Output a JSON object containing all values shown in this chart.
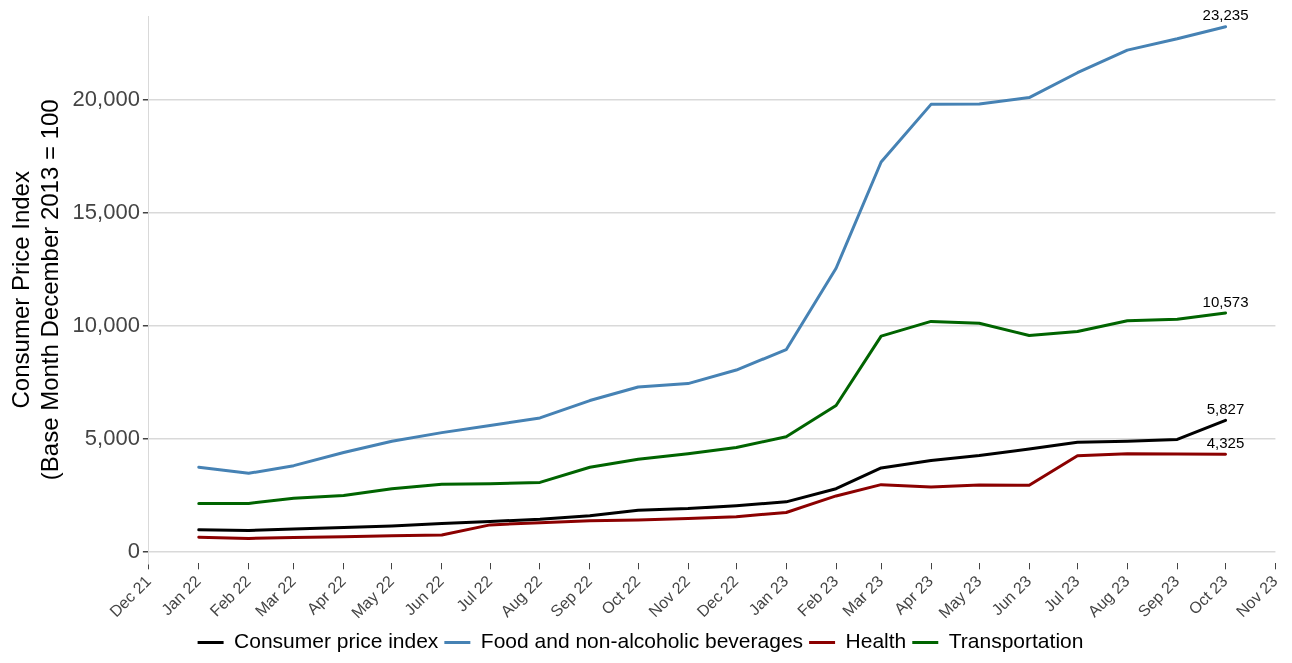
{
  "chart_data": {
    "type": "line",
    "ylabel": "Consumer Price Index\n(Base Month December 2013 = 100",
    "x": [
      "2022-01",
      "2022-02",
      "2022-03",
      "2022-04",
      "2022-05",
      "2022-06",
      "2022-07",
      "2022-08",
      "2022-09",
      "2022-10",
      "2022-11",
      "2022-12",
      "2023-01",
      "2023-02",
      "2023-03",
      "2023-04",
      "2023-05",
      "2023-06",
      "2023-07",
      "2023-08",
      "2023-09",
      "2023-10"
    ],
    "series": [
      {
        "name": "Consumer price index",
        "color": "#000000",
        "values": [
          980,
          950,
          1020,
          1080,
          1150,
          1260,
          1350,
          1450,
          1600,
          1850,
          1920,
          2050,
          2220,
          2800,
          3720,
          4050,
          4270,
          4560,
          4860,
          4900,
          4980,
          5827
        ],
        "value_labels": [
          null,
          null,
          null,
          null,
          null,
          null,
          null,
          null,
          null,
          null,
          null,
          null,
          null,
          null,
          null,
          null,
          null,
          null,
          null,
          null,
          null,
          "5,827"
        ]
      },
      {
        "name": "Food and non-alcoholic beverages",
        "color": "#4682b4",
        "values": [
          3750,
          3480,
          3820,
          4400,
          4900,
          5280,
          5600,
          5930,
          6700,
          7300,
          7450,
          8050,
          8950,
          12550,
          17250,
          19800,
          19820,
          20100,
          21200,
          22200,
          22700,
          23235
        ],
        "value_labels": [
          null,
          null,
          null,
          null,
          null,
          null,
          null,
          null,
          null,
          null,
          null,
          null,
          null,
          null,
          null,
          null,
          null,
          null,
          null,
          null,
          null,
          "23,235"
        ]
      },
      {
        "name": "Health",
        "color": "#8b0000",
        "values": [
          650,
          600,
          640,
          680,
          720,
          750,
          1200,
          1300,
          1380,
          1420,
          1480,
          1560,
          1750,
          2480,
          2980,
          2880,
          2960,
          2950,
          4260,
          4350,
          4340,
          4325
        ],
        "value_labels": [
          null,
          null,
          null,
          null,
          null,
          null,
          null,
          null,
          null,
          null,
          null,
          null,
          null,
          null,
          null,
          null,
          null,
          null,
          null,
          null,
          null,
          "4,325"
        ]
      },
      {
        "name": "Transportation",
        "color": "#006400",
        "values": [
          2150,
          2150,
          2380,
          2500,
          2800,
          3000,
          3020,
          3080,
          3750,
          4100,
          4350,
          4620,
          5100,
          6480,
          9550,
          10200,
          10120,
          9580,
          9750,
          10230,
          10300,
          10573
        ],
        "value_labels": [
          null,
          null,
          null,
          null,
          null,
          null,
          null,
          null,
          null,
          null,
          null,
          null,
          null,
          null,
          null,
          null,
          null,
          null,
          null,
          null,
          null,
          "10,573"
        ]
      }
    ],
    "xlim": [
      "2021-12",
      "2023-11"
    ],
    "xticks": [
      {
        "value": "2021-12",
        "label": "Dec 21"
      },
      {
        "value": "2022-01",
        "label": "Jan 22"
      },
      {
        "value": "2022-02",
        "label": "Feb 22"
      },
      {
        "value": "2022-03",
        "label": "Mar 22"
      },
      {
        "value": "2022-04",
        "label": "Apr 22"
      },
      {
        "value": "2022-05",
        "label": "May 22"
      },
      {
        "value": "2022-06",
        "label": "Jun 22"
      },
      {
        "value": "2022-07",
        "label": "Jul 22"
      },
      {
        "value": "2022-08",
        "label": "Aug 22"
      },
      {
        "value": "2022-09",
        "label": "Sep 22"
      },
      {
        "value": "2022-10",
        "label": "Oct 22"
      },
      {
        "value": "2022-11",
        "label": "Nov 22"
      },
      {
        "value": "2022-12",
        "label": "Dec 22"
      },
      {
        "value": "2023-01",
        "label": "Jan 23"
      },
      {
        "value": "2023-02",
        "label": "Feb 23"
      },
      {
        "value": "2023-03",
        "label": "Mar 23"
      },
      {
        "value": "2023-04",
        "label": "Apr 23"
      },
      {
        "value": "2023-05",
        "label": "May 23"
      },
      {
        "value": "2023-06",
        "label": "Jun 23"
      },
      {
        "value": "2023-07",
        "label": "Jul 23"
      },
      {
        "value": "2023-08",
        "label": "Aug 23"
      },
      {
        "value": "2023-09",
        "label": "Sep 23"
      },
      {
        "value": "2023-10",
        "label": "Oct 23"
      },
      {
        "value": "2023-11",
        "label": "Nov 23"
      }
    ],
    "ylim": [
      -500,
      23700
    ],
    "yticks": [
      {
        "value": 0,
        "label": "0"
      },
      {
        "value": 5000,
        "label": "5,000"
      },
      {
        "value": 10000,
        "label": "10,000"
      },
      {
        "value": 15000,
        "label": "15,000"
      },
      {
        "value": 20000,
        "label": "20,000"
      }
    ],
    "grid": "y",
    "legend": "bottom",
    "marker": "none",
    "line_style": "solid"
  }
}
